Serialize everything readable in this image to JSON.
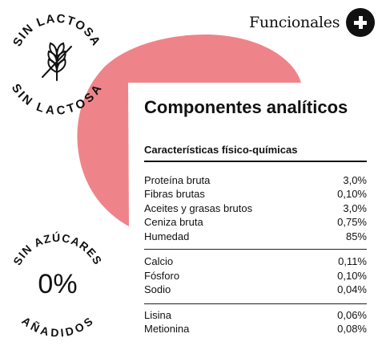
{
  "header": {
    "label": "Funcionales",
    "icon": "plus-circle-icon"
  },
  "badges": {
    "lactosa": {
      "top": "SIN LACTOSA",
      "bottom": "SIN LACTOSA",
      "icon": "wheat-crossed-icon"
    },
    "azucar": {
      "top": "SIN AZÚCARES",
      "center": "0%",
      "bottom": "AÑADIDOS"
    }
  },
  "card": {
    "title": "Componentes analíticos",
    "subtitle": "Características físico-químicas",
    "groups": [
      [
        {
          "label": "Proteína bruta",
          "value": "3,0%"
        },
        {
          "label": "Fibras brutas",
          "value": "0,10%"
        },
        {
          "label": "Aceites y grasas brutos",
          "value": "3,0%"
        },
        {
          "label": "Ceniza bruta",
          "value": "0,75%"
        },
        {
          "label": "Humedad",
          "value": "85%"
        }
      ],
      [
        {
          "label": "Calcio",
          "value": "0,11%"
        },
        {
          "label": "Fósforo",
          "value": "0,10%"
        },
        {
          "label": "Sodio",
          "value": "0,04%"
        }
      ],
      [
        {
          "label": "Lisina",
          "value": "0,06%"
        },
        {
          "label": "Metionina",
          "value": "0,08%"
        }
      ]
    ]
  },
  "colors": {
    "accent": "#ee8489",
    "text": "#111111"
  }
}
